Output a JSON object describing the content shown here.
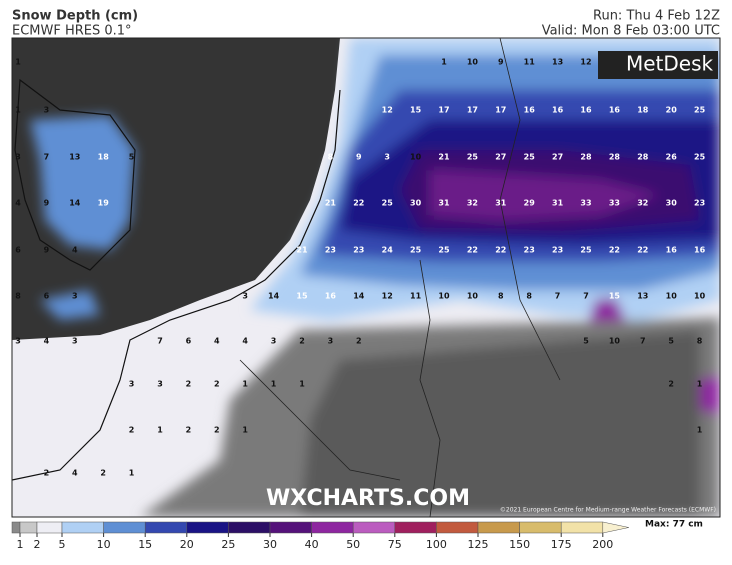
{
  "header": {
    "title": "Snow Depth (cm)",
    "model": "ECMWF HRES 0.1°",
    "run": "Run: Thu 4 Feb 12Z",
    "valid": "Valid: Mon 8 Feb 03:00 UTC"
  },
  "logo": "MetDesk",
  "watermark": "WXCHARTS.COM",
  "copyright": "©2021 European Centre for Medium-range Weather Forecasts (ECMWF)",
  "max_label": "Max: 77 cm",
  "grid": [
    [
      1,
      null,
      null,
      null,
      null,
      null,
      null,
      null,
      null,
      null,
      null,
      null,
      null,
      null,
      null,
      1,
      10,
      9,
      11,
      13,
      12,
      null,
      null,
      null,
      null
    ],
    [
      1,
      3,
      null,
      null,
      null,
      null,
      null,
      null,
      null,
      null,
      null,
      null,
      null,
      12,
      15,
      17,
      17,
      17,
      16,
      16,
      16,
      16,
      18,
      20,
      25
    ],
    [
      3,
      7,
      13,
      18,
      5,
      null,
      null,
      null,
      null,
      null,
      null,
      8,
      9,
      3,
      10,
      21,
      25,
      27,
      25,
      27,
      28,
      28,
      28,
      26,
      25
    ],
    [
      4,
      9,
      14,
      19,
      null,
      null,
      null,
      null,
      null,
      null,
      null,
      21,
      22,
      25,
      30,
      31,
      32,
      31,
      29,
      31,
      33,
      33,
      32,
      30,
      23
    ],
    [
      6,
      9,
      4,
      null,
      null,
      null,
      null,
      null,
      null,
      null,
      21,
      23,
      23,
      24,
      25,
      25,
      22,
      22,
      23,
      23,
      25,
      22,
      22,
      16,
      16
    ],
    [
      8,
      6,
      3,
      null,
      null,
      null,
      null,
      null,
      3,
      14,
      15,
      16,
      14,
      12,
      11,
      10,
      10,
      8,
      8,
      7,
      7,
      15,
      13,
      10,
      10
    ],
    [
      3,
      4,
      3,
      null,
      null,
      7,
      6,
      4,
      4,
      3,
      2,
      3,
      2,
      null,
      null,
      null,
      null,
      null,
      null,
      null,
      5,
      10,
      7,
      5,
      8
    ],
    [
      null,
      null,
      null,
      null,
      3,
      3,
      2,
      2,
      1,
      1,
      1,
      null,
      null,
      null,
      null,
      null,
      null,
      null,
      null,
      null,
      null,
      null,
      null,
      2,
      1
    ],
    [
      null,
      null,
      null,
      null,
      2,
      1,
      2,
      2,
      1,
      null,
      null,
      null,
      null,
      null,
      null,
      null,
      null,
      null,
      null,
      null,
      null,
      null,
      null,
      null,
      1
    ],
    [
      null,
      2,
      4,
      2,
      1,
      null,
      null,
      null,
      null,
      null,
      null,
      null,
      null,
      null,
      null,
      null,
      null,
      null,
      null,
      null,
      null,
      null,
      null,
      null,
      null
    ]
  ],
  "legend": {
    "levels": [
      1,
      2,
      5,
      10,
      15,
      20,
      25,
      30,
      40,
      50,
      75,
      100,
      125,
      150,
      175,
      200
    ],
    "colors": [
      "#8a8a8a",
      "#c8c8c8",
      "#eeeef4",
      "#b0d0f4",
      "#5f8fd4",
      "#3448b0",
      "#1a1485",
      "#2c0f66",
      "#55127a",
      "#8e26a0",
      "#bb5cbf",
      "#a0205e",
      "#c25a3e",
      "#c89a4c",
      "#d8bc6c",
      "#f2e2a8",
      "#f8f0d0"
    ]
  }
}
